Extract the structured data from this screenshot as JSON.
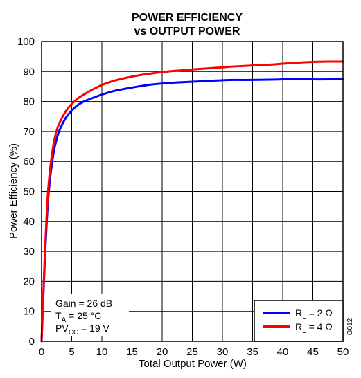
{
  "chart_data": {
    "type": "line",
    "title": "POWER EFFICIENCY",
    "subtitle": "vs OUTPUT POWER",
    "xlabel": "Total Output Power (W)",
    "ylabel": "Power Efficiency (%)",
    "xlim": [
      0,
      50
    ],
    "ylim": [
      0,
      100
    ],
    "x_ticks": [
      0,
      5,
      10,
      15,
      20,
      25,
      30,
      35,
      40,
      45,
      50
    ],
    "y_ticks": [
      0,
      10,
      20,
      30,
      40,
      50,
      60,
      70,
      80,
      90,
      100
    ],
    "grid": true,
    "legend_position": "bottom-right",
    "series": [
      {
        "name_main": "R",
        "name_sub": "L",
        "name_rest": " = 2 Ω",
        "color": "#0000ff",
        "x": [
          0,
          0.5,
          1,
          1.5,
          2,
          2.5,
          3,
          4,
          5,
          6,
          7,
          8,
          10,
          12,
          14,
          16,
          18,
          20,
          22,
          25,
          28,
          30,
          32,
          35,
          38,
          40,
          42,
          45,
          48,
          50
        ],
        "y": [
          0,
          25,
          45,
          56,
          63,
          67.5,
          70.5,
          74.5,
          77,
          78.8,
          80,
          80.8,
          82.3,
          83.5,
          84.3,
          85,
          85.6,
          86,
          86.3,
          86.6,
          86.9,
          87.1,
          87.2,
          87.2,
          87.3,
          87.4,
          87.5,
          87.4,
          87.4,
          87.4
        ]
      },
      {
        "name_main": "R",
        "name_sub": "L",
        "name_rest": " = 4 Ω",
        "color": "#ff0000",
        "x": [
          0,
          0.5,
          1,
          1.5,
          2,
          2.5,
          3,
          4,
          5,
          6,
          7,
          8,
          10,
          12,
          14,
          16,
          18,
          20,
          22,
          25,
          28,
          30,
          32,
          35,
          38,
          40,
          42,
          45,
          48,
          50
        ],
        "y": [
          0,
          27,
          48,
          59,
          66,
          70.3,
          73,
          76.7,
          79.2,
          81,
          82.3,
          83.5,
          85.5,
          86.9,
          87.9,
          88.7,
          89.3,
          89.8,
          90.2,
          90.7,
          91.1,
          91.4,
          91.7,
          92,
          92.3,
          92.6,
          92.9,
          93.2,
          93.3,
          93.3
        ]
      }
    ],
    "annotations": {
      "gain": "Gain = 26 dB",
      "ta_main": "T",
      "ta_sub": "A",
      "ta_rest": " = 25 °C",
      "pv_main": "PV",
      "pv_sub": "CC",
      "pv_rest": " = 19 V"
    },
    "figure_id": "G012"
  }
}
